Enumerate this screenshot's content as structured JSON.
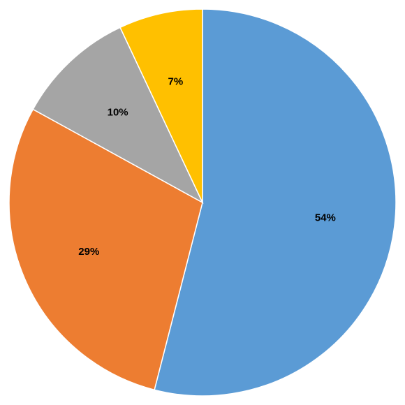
{
  "chart_data": {
    "type": "pie",
    "title": "",
    "legend": "none",
    "start_angle_deg": 0,
    "direction": "clockwise",
    "slices": [
      {
        "label": "54%",
        "value": 54,
        "color": "#5B9BD5"
      },
      {
        "label": "29%",
        "value": 29,
        "color": "#ED7D31"
      },
      {
        "label": "10%",
        "value": 10,
        "color": "#A5A5A5"
      },
      {
        "label": "7%",
        "value": 7,
        "color": "#FFC000"
      }
    ]
  }
}
